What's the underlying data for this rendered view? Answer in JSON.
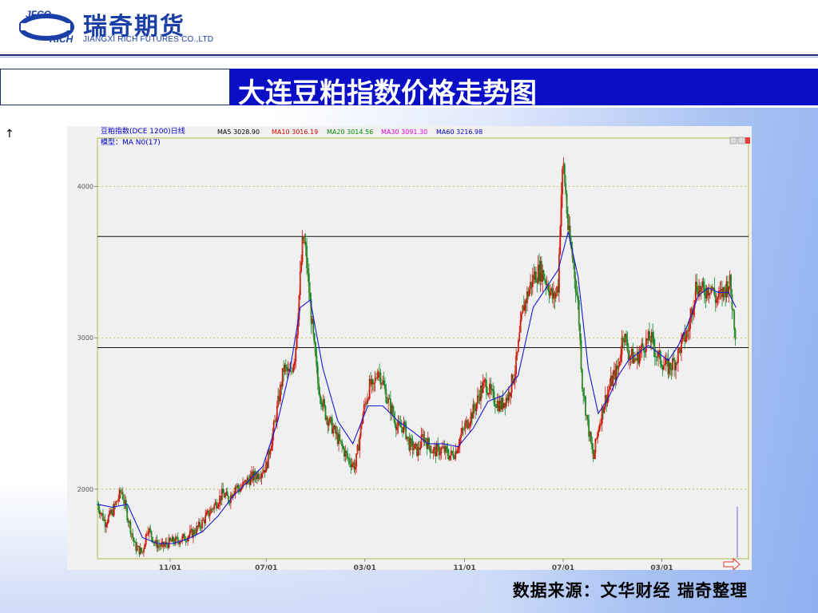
{
  "header": {
    "logo_mark_top": "JFCO",
    "logo_mark_bottom": "RICH",
    "logo_cn": "瑞奇期货",
    "logo_en": "JIANGXI RICH FUTURES CO.,LTD"
  },
  "slide": {
    "title": "大连豆粕指数价格走势图",
    "side_arrow": "↑",
    "source": "数据来源：文华财经 瑞奇整理"
  },
  "colors": {
    "title_bar": "#0a0fc6",
    "candle_up": "#d01010",
    "candle_down": "#0c8a2a",
    "ma_line": "#1818d0",
    "ma5": "#000000",
    "ma10": "#d00000",
    "ma20": "#008800",
    "ma30": "#e000e0",
    "ma60": "#0000cc"
  },
  "chart_data": {
    "type": "line",
    "instrument": "豆粕指数(DCE 1200)日线",
    "model_label": "模型：MA N0(17)",
    "legend": [
      {
        "name": "MA5",
        "value": "3028.90"
      },
      {
        "name": "MA10",
        "value": "3016.19"
      },
      {
        "name": "MA20",
        "value": "3014.56"
      },
      {
        "name": "MA30",
        "value": "3091.30"
      },
      {
        "name": "MA60",
        "value": "3216.98"
      }
    ],
    "x_tick_labels": [
      "11/01",
      "07/01",
      "03/01",
      "11/01",
      "07/01",
      "03/01"
    ],
    "y_tick_labels": [
      "2000",
      "3000",
      "4000"
    ],
    "ylim": [
      1540,
      4320
    ],
    "reference_lines": [
      3670,
      2935
    ],
    "grid": "dotted horizontal at 2000, 3000, 4000",
    "x_index_range": [
      0,
      1300
    ],
    "x_tick_index": [
      145,
      337,
      534,
      733,
      930,
      1127
    ],
    "series": [
      {
        "name": "豆粕指数",
        "x": [
          0,
          15,
          30,
          48,
          60,
          75,
          90,
          100,
          115,
          130,
          145,
          160,
          175,
          190,
          205,
          220,
          235,
          250,
          262,
          275,
          285,
          300,
          320,
          337,
          355,
          372,
          385,
          395,
          403,
          410,
          415,
          420,
          428,
          440,
          455,
          470,
          485,
          500,
          515,
          530,
          545,
          550,
          560,
          570,
          578,
          590,
          600,
          612,
          622,
          640,
          650,
          670,
          690,
          705,
          715,
          725,
          740,
          755,
          765,
          775,
          790,
          805,
          820,
          835,
          850,
          870,
          885,
          900,
          910,
          920,
          925,
          930,
          935,
          940,
          950,
          960,
          968,
          978,
          990,
          1000,
          1010,
          1025,
          1040,
          1050,
          1060,
          1075,
          1090,
          1105,
          1115,
          1125,
          1140,
          1155,
          1165,
          1180,
          1195,
          1210,
          1225,
          1235,
          1250,
          1262,
          1275
        ],
        "values": [
          1900,
          1780,
          1850,
          1990,
          1820,
          1620,
          1580,
          1750,
          1640,
          1620,
          1650,
          1660,
          1680,
          1710,
          1760,
          1830,
          1900,
          1970,
          1930,
          2020,
          2000,
          2060,
          2100,
          2150,
          2450,
          2800,
          2750,
          2900,
          3300,
          3650,
          3600,
          3400,
          3100,
          2700,
          2500,
          2400,
          2300,
          2200,
          2150,
          2500,
          2700,
          2650,
          2800,
          2700,
          2600,
          2500,
          2400,
          2420,
          2300,
          2250,
          2350,
          2250,
          2260,
          2220,
          2250,
          2350,
          2450,
          2550,
          2650,
          2700,
          2600,
          2550,
          2620,
          2800,
          3200,
          3400,
          3450,
          3350,
          3250,
          3350,
          3900,
          4150,
          3950,
          3700,
          3500,
          3200,
          2700,
          2450,
          2200,
          2400,
          2550,
          2700,
          2800,
          3050,
          2900,
          2850,
          2950,
          3000,
          2900,
          2850,
          2800,
          2850,
          2950,
          3050,
          3350,
          3300,
          3350,
          3250,
          3300,
          3380,
          3000
        ]
      },
      {
        "name": "MA",
        "x": [
          0,
          30,
          60,
          90,
          120,
          150,
          180,
          210,
          240,
          270,
          300,
          330,
          360,
          385,
          405,
          425,
          450,
          480,
          510,
          540,
          570,
          600,
          630,
          660,
          690,
          720,
          750,
          780,
          810,
          840,
          870,
          900,
          920,
          940,
          960,
          980,
          1000,
          1020,
          1040,
          1060,
          1080,
          1100,
          1120,
          1140,
          1160,
          1180,
          1200,
          1220,
          1240,
          1260,
          1275
        ],
        "values": [
          1900,
          1880,
          1900,
          1680,
          1640,
          1640,
          1670,
          1720,
          1820,
          1950,
          2050,
          2150,
          2450,
          2800,
          3200,
          3250,
          2800,
          2450,
          2300,
          2550,
          2550,
          2450,
          2380,
          2300,
          2300,
          2280,
          2400,
          2580,
          2620,
          2750,
          3200,
          3350,
          3450,
          3700,
          3400,
          2800,
          2500,
          2600,
          2750,
          2850,
          2900,
          2950,
          2900,
          2850,
          2950,
          3100,
          3280,
          3330,
          3300,
          3300,
          3200
        ]
      }
    ]
  }
}
